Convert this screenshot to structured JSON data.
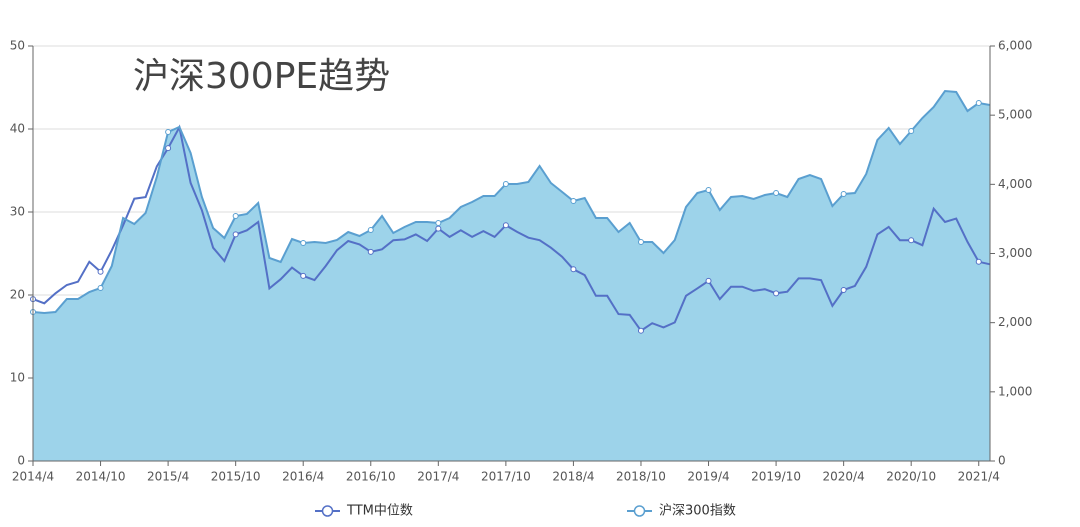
{
  "chart_data": {
    "type": "line",
    "title": "沪深300PE趋势",
    "categories": [
      "2014/4",
      null,
      null,
      null,
      null,
      null,
      "2014/10",
      null,
      null,
      null,
      null,
      null,
      "2015/4",
      null,
      null,
      null,
      null,
      null,
      "2015/10",
      null,
      null,
      null,
      null,
      null,
      "2016/4",
      null,
      null,
      null,
      null,
      null,
      "2016/10",
      null,
      null,
      null,
      null,
      null,
      "2017/4",
      null,
      null,
      null,
      null,
      null,
      "2017/10",
      null,
      null,
      null,
      null,
      null,
      "2018/4",
      null,
      null,
      null,
      null,
      null,
      "2018/10",
      null,
      null,
      null,
      null,
      null,
      "2019/4",
      null,
      null,
      null,
      null,
      null,
      "2019/10",
      null,
      null,
      null,
      null,
      null,
      "2020/4",
      null,
      null,
      null,
      null,
      null,
      "2020/10",
      null,
      null,
      null,
      null,
      null,
      "2021/4",
      null
    ],
    "series": [
      {
        "name": "TTM中位数",
        "color": "#5470c6",
        "values": [
          19.5,
          19.0,
          20.2,
          21.2,
          21.6,
          24.0,
          22.8,
          25.4,
          28.4,
          31.6,
          31.8,
          35.5,
          37.7,
          40.2,
          33.5,
          30.2,
          25.7,
          24.1,
          27.3,
          27.8,
          28.8,
          20.8,
          21.9,
          23.3,
          22.3,
          21.8,
          23.5,
          25.4,
          26.5,
          26.1,
          25.2,
          25.5,
          26.6,
          26.7,
          27.3,
          26.5,
          28.0,
          27.0,
          27.8,
          27.0,
          27.7,
          27.0,
          28.4,
          27.6,
          26.9,
          26.6,
          25.7,
          24.6,
          23.1,
          22.4,
          19.9,
          19.9,
          17.7,
          17.6,
          15.7,
          16.6,
          16.1,
          16.7,
          19.9,
          20.8,
          21.7,
          19.5,
          21.0,
          21.0,
          20.5,
          20.7,
          20.2,
          20.4,
          22.0,
          22.0,
          21.8,
          18.7,
          20.6,
          21.1,
          23.4,
          27.3,
          28.2,
          26.6,
          26.6,
          26.0,
          30.4,
          28.8,
          29.2,
          26.4,
          24.0,
          23.7
        ]
      },
      {
        "name": "沪深300指数",
        "color": "#5a9fd0",
        "area_color": "#9dd3ea",
        "axis": "y2",
        "values": [
          2154,
          2140,
          2154,
          2342,
          2342,
          2443,
          2501,
          2819,
          3513,
          3426,
          3585,
          4106,
          4756,
          4829,
          4453,
          3817,
          3369,
          3224,
          3542,
          3571,
          3730,
          2935,
          2877,
          3209,
          3152,
          3166,
          3152,
          3195,
          3311,
          3253,
          3340,
          3542,
          3296,
          3383,
          3455,
          3455,
          3441,
          3513,
          3672,
          3744,
          3831,
          3831,
          4005,
          4005,
          4034,
          4265,
          4019,
          3889,
          3759,
          3802,
          3513,
          3513,
          3311,
          3441,
          3166,
          3166,
          3007,
          3195,
          3672,
          3875,
          3918,
          3629,
          3817,
          3831,
          3788,
          3846,
          3875,
          3817,
          4077,
          4135,
          4077,
          3687,
          3860,
          3875,
          4149,
          4641,
          4814,
          4583,
          4771,
          4959,
          5118,
          5349,
          5335,
          5060,
          5176,
          5147
        ]
      }
    ],
    "ylim": [
      0,
      50
    ],
    "yticks": [
      0,
      10,
      20,
      30,
      40,
      50
    ],
    "y2lim": [
      0,
      6000
    ],
    "y2ticks": [
      0,
      {
        "value": 1000,
        "label": "1,000"
      },
      {
        "value": 2000,
        "label": "2,000"
      },
      {
        "value": 3000,
        "label": "3,000"
      },
      {
        "value": 4000,
        "label": "4,000"
      },
      {
        "value": 5000,
        "label": "5,000"
      },
      {
        "value": 6000,
        "label": "6,000"
      }
    ],
    "grid": true,
    "legend": "bottom"
  }
}
